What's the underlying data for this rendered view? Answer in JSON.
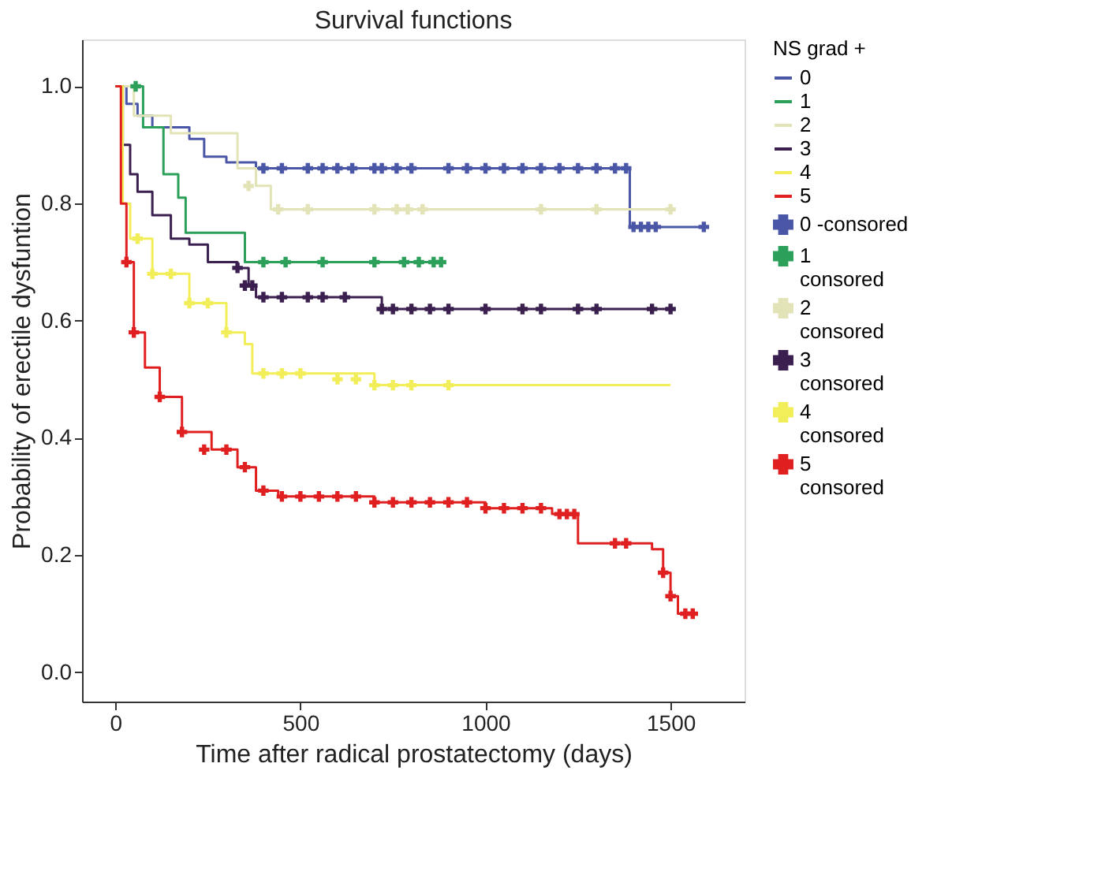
{
  "chart_data": {
    "type": "step",
    "title": "Survival functions",
    "xlabel": "Time after radical prostatectomy (days)",
    "ylabel": "Probability of erectile dysfuntion",
    "legend_title": "NS grad +",
    "legend": "right",
    "grid": false,
    "line_style": "solid",
    "xlim": [
      -90,
      1700
    ],
    "ylim": [
      -0.05,
      1.08
    ],
    "xticks": [
      0,
      500,
      1000,
      1500
    ],
    "yticks": [
      {
        "value": 0,
        "label": "0.0"
      },
      {
        "value": 0.2,
        "label": "0.2"
      },
      {
        "value": 0.4,
        "label": "0.4"
      },
      {
        "value": 0.6,
        "label": "0.6"
      },
      {
        "value": 0.8,
        "label": "0.8"
      },
      {
        "value": 1,
        "label": "1.0"
      }
    ],
    "series": [
      {
        "name": "0",
        "color": "#4a56a6",
        "x": [
          0,
          30,
          60,
          100,
          200,
          240,
          300,
          380,
          1390,
          1590
        ],
        "values": [
          1.0,
          0.97,
          0.95,
          0.93,
          0.91,
          0.88,
          0.87,
          0.86,
          0.76,
          0.76
        ]
      },
      {
        "name": "1",
        "color": "#2ca05a",
        "x": [
          0,
          75,
          130,
          170,
          190,
          350,
          880
        ],
        "values": [
          1.0,
          0.93,
          0.85,
          0.81,
          0.75,
          0.7,
          0.7
        ]
      },
      {
        "name": "2",
        "color": "#e3e3b8",
        "x": [
          0,
          50,
          150,
          330,
          380,
          420,
          1500
        ],
        "values": [
          1.0,
          0.95,
          0.92,
          0.86,
          0.83,
          0.79,
          0.79
        ]
      },
      {
        "name": "3",
        "color": "#3a1f4f",
        "x": [
          0,
          20,
          40,
          60,
          100,
          150,
          200,
          250,
          330,
          360,
          380,
          720,
          1500
        ],
        "values": [
          1.0,
          0.9,
          0.85,
          0.82,
          0.78,
          0.74,
          0.73,
          0.7,
          0.69,
          0.66,
          0.64,
          0.62,
          0.62
        ]
      },
      {
        "name": "4",
        "color": "#f2ee5a",
        "x": [
          0,
          20,
          40,
          100,
          200,
          300,
          350,
          370,
          700,
          1500
        ],
        "values": [
          1.0,
          0.8,
          0.74,
          0.68,
          0.63,
          0.58,
          0.56,
          0.51,
          0.49,
          0.49
        ]
      },
      {
        "name": "5",
        "color": "#e02020",
        "x": [
          0,
          15,
          30,
          50,
          80,
          120,
          180,
          260,
          330,
          380,
          440,
          700,
          1000,
          1180,
          1250,
          1450,
          1480,
          1500,
          1520,
          1560
        ],
        "values": [
          1.0,
          0.8,
          0.7,
          0.58,
          0.52,
          0.47,
          0.41,
          0.38,
          0.35,
          0.31,
          0.3,
          0.29,
          0.28,
          0.27,
          0.22,
          0.21,
          0.17,
          0.13,
          0.1,
          0.1
        ]
      },
      {
        "name": "0  -consored",
        "type": "scatter",
        "marker": "cross",
        "color": "#4a56a6",
        "x": [
          400,
          450,
          520,
          560,
          600,
          640,
          700,
          720,
          760,
          800,
          900,
          950,
          1000,
          1050,
          1100,
          1150,
          1200,
          1250,
          1300,
          1350,
          1380,
          1400,
          1420,
          1440,
          1460,
          1590
        ],
        "values": [
          0.86,
          0.86,
          0.86,
          0.86,
          0.86,
          0.86,
          0.86,
          0.86,
          0.86,
          0.86,
          0.86,
          0.86,
          0.86,
          0.86,
          0.86,
          0.86,
          0.86,
          0.86,
          0.86,
          0.86,
          0.86,
          0.76,
          0.76,
          0.76,
          0.76,
          0.76
        ]
      },
      {
        "name": "1\nconsored",
        "type": "scatter",
        "marker": "cross",
        "color": "#2ca05a",
        "x": [
          55,
          400,
          460,
          560,
          700,
          780,
          820,
          860,
          880
        ],
        "values": [
          1.0,
          0.7,
          0.7,
          0.7,
          0.7,
          0.7,
          0.7,
          0.7,
          0.7
        ]
      },
      {
        "name": "2\nconsored",
        "type": "scatter",
        "marker": "cross",
        "color": "#e3e3b8",
        "x": [
          360,
          440,
          520,
          700,
          760,
          790,
          830,
          1150,
          1300,
          1500
        ],
        "values": [
          0.83,
          0.79,
          0.79,
          0.79,
          0.79,
          0.79,
          0.79,
          0.79,
          0.79,
          0.79
        ]
      },
      {
        "name": "3\nconsored",
        "type": "scatter",
        "marker": "cross",
        "color": "#3a1f4f",
        "x": [
          330,
          350,
          370,
          400,
          450,
          520,
          560,
          620,
          720,
          750,
          800,
          850,
          900,
          1000,
          1100,
          1150,
          1250,
          1300,
          1450,
          1500
        ],
        "values": [
          0.69,
          0.66,
          0.66,
          0.64,
          0.64,
          0.64,
          0.64,
          0.64,
          0.62,
          0.62,
          0.62,
          0.62,
          0.62,
          0.62,
          0.62,
          0.62,
          0.62,
          0.62,
          0.62,
          0.62
        ]
      },
      {
        "name": "4\nconsored",
        "type": "scatter",
        "marker": "cross",
        "color": "#f2ee5a",
        "x": [
          60,
          100,
          150,
          200,
          250,
          300,
          400,
          450,
          500,
          600,
          650,
          700,
          750,
          800,
          900
        ],
        "values": [
          0.74,
          0.68,
          0.68,
          0.63,
          0.63,
          0.58,
          0.51,
          0.51,
          0.51,
          0.5,
          0.5,
          0.49,
          0.49,
          0.49,
          0.49
        ]
      },
      {
        "name": "5\nconsored",
        "type": "scatter",
        "marker": "cross",
        "color": "#e02020",
        "x": [
          30,
          50,
          120,
          180,
          240,
          300,
          350,
          400,
          450,
          500,
          550,
          600,
          650,
          700,
          750,
          800,
          850,
          900,
          950,
          1000,
          1050,
          1100,
          1150,
          1200,
          1220,
          1240,
          1350,
          1380,
          1480,
          1500,
          1540,
          1560
        ],
        "values": [
          0.7,
          0.58,
          0.47,
          0.41,
          0.38,
          0.38,
          0.35,
          0.31,
          0.3,
          0.3,
          0.3,
          0.3,
          0.3,
          0.29,
          0.29,
          0.29,
          0.29,
          0.29,
          0.29,
          0.28,
          0.28,
          0.28,
          0.28,
          0.27,
          0.27,
          0.27,
          0.22,
          0.22,
          0.17,
          0.13,
          0.1,
          0.1
        ]
      }
    ]
  }
}
